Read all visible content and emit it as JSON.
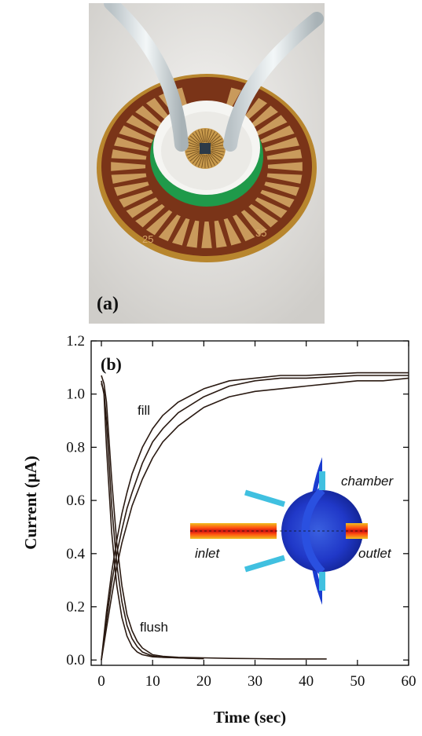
{
  "panel_a": {
    "label": "(a)",
    "pad_numbers": [
      "25",
      "35"
    ]
  },
  "chart_data": {
    "type": "line",
    "panel_label": "(b)",
    "xlabel": "Time (sec)",
    "ylabel": "Current (μA)",
    "xlim": [
      -2,
      60
    ],
    "ylim": [
      -0.02,
      1.2
    ],
    "x_ticks": [
      0,
      10,
      20,
      30,
      40,
      50,
      60
    ],
    "y_ticks": [
      0.0,
      0.2,
      0.4,
      0.6,
      0.8,
      1.0,
      1.2
    ],
    "x_tick_labels": [
      "0",
      "10",
      "20",
      "30",
      "40",
      "50",
      "60"
    ],
    "y_tick_labels": [
      "0.0",
      "0.2",
      "0.4",
      "0.6",
      "0.8",
      "1.0",
      "1.2"
    ],
    "grid": false,
    "annotations": [
      "fill",
      "flush"
    ],
    "line_color": "#2a1a12",
    "series": [
      {
        "x": [
          0,
          1,
          2,
          3,
          4,
          5,
          6,
          8,
          10,
          12,
          15,
          20,
          25,
          30,
          35,
          40,
          45,
          50,
          55,
          60
        ],
        "y": [
          0.0,
          0.18,
          0.33,
          0.45,
          0.55,
          0.63,
          0.7,
          0.8,
          0.87,
          0.92,
          0.97,
          1.02,
          1.05,
          1.06,
          1.07,
          1.07,
          1.075,
          1.08,
          1.08,
          1.08
        ]
      },
      {
        "x": [
          0,
          1,
          2,
          3,
          4,
          5,
          6,
          8,
          10,
          12,
          15,
          20,
          25,
          30,
          35,
          40,
          45,
          50,
          55,
          60
        ],
        "y": [
          0.0,
          0.15,
          0.29,
          0.4,
          0.49,
          0.57,
          0.63,
          0.74,
          0.82,
          0.87,
          0.93,
          0.99,
          1.03,
          1.05,
          1.06,
          1.06,
          1.065,
          1.07,
          1.07,
          1.07
        ]
      },
      {
        "x": [
          0,
          1,
          2,
          3,
          4,
          5,
          6,
          8,
          10,
          12,
          15,
          20,
          25,
          30,
          35,
          40,
          45,
          50,
          55,
          60
        ],
        "y": [
          0.0,
          0.12,
          0.24,
          0.35,
          0.44,
          0.51,
          0.58,
          0.68,
          0.76,
          0.82,
          0.88,
          0.95,
          0.99,
          1.01,
          1.02,
          1.03,
          1.04,
          1.05,
          1.05,
          1.06
        ]
      },
      {
        "x": [
          0,
          0.5,
          1,
          2,
          3,
          4,
          5,
          6,
          7,
          8,
          10,
          12,
          15,
          18,
          20
        ],
        "y": [
          1.05,
          1.0,
          0.8,
          0.48,
          0.28,
          0.16,
          0.09,
          0.05,
          0.03,
          0.02,
          0.012,
          0.01,
          0.008,
          0.006,
          0.005
        ]
      },
      {
        "x": [
          0,
          0.5,
          1,
          2,
          3,
          4,
          5,
          6,
          7,
          8,
          10,
          12,
          15,
          18,
          20
        ],
        "y": [
          1.04,
          1.01,
          0.9,
          0.58,
          0.36,
          0.22,
          0.13,
          0.08,
          0.05,
          0.03,
          0.015,
          0.01,
          0.008,
          0.006,
          0.005
        ]
      },
      {
        "x": [
          0,
          0.5,
          1,
          2,
          3,
          4,
          5,
          6,
          7,
          8,
          10,
          12,
          15,
          20,
          25,
          30,
          35,
          40,
          44
        ],
        "y": [
          1.07,
          1.04,
          0.97,
          0.68,
          0.44,
          0.28,
          0.17,
          0.11,
          0.07,
          0.045,
          0.02,
          0.014,
          0.01,
          0.008,
          0.006,
          0.005,
          0.004,
          0.004,
          0.004
        ]
      }
    ]
  },
  "inset": {
    "labels": {
      "chamber": "chamber",
      "inlet": "inlet",
      "outlet": "outlet"
    }
  }
}
